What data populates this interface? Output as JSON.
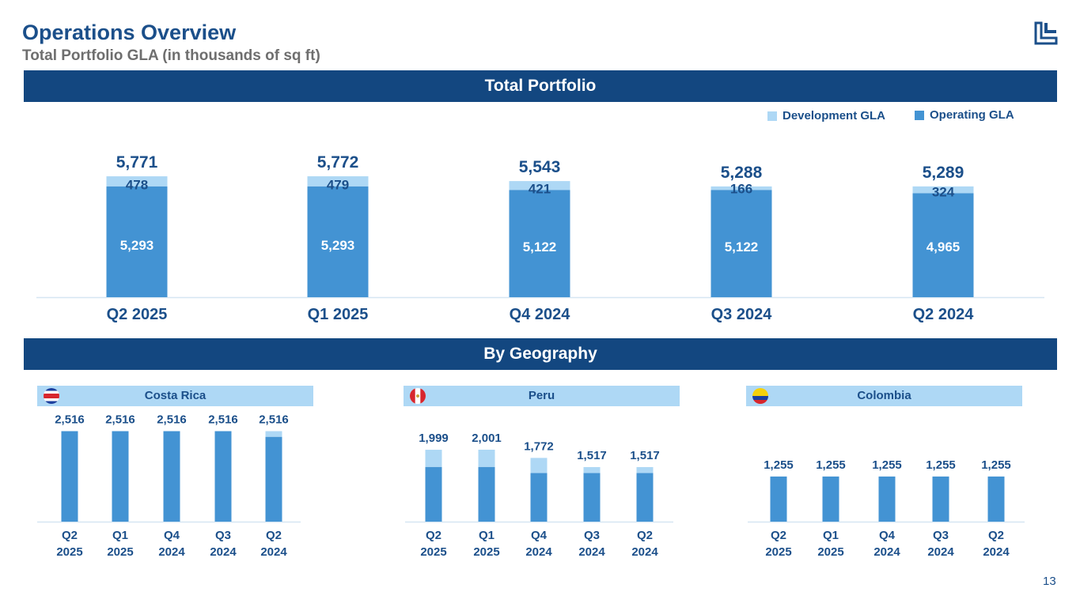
{
  "header": {
    "title": "Operations Overview",
    "subtitle": "Total Portfolio GLA (in thousands of sq ft)",
    "logo_icon": "company-logo-icon"
  },
  "sections": {
    "total_portfolio": "Total Portfolio",
    "by_geography": "By Geography"
  },
  "legend": {
    "development": "Development GLA",
    "operating": "Operating GLA"
  },
  "colors": {
    "operating": "#4393d3",
    "development": "#aed8f5",
    "navy": "#134780",
    "label_dark": "#1b4f8a"
  },
  "page_number": "13",
  "chart_data": [
    {
      "type": "bar",
      "id": "total",
      "title": "Total Portfolio",
      "stacked": true,
      "categories": [
        "Q2 2025",
        "Q1 2025",
        "Q4 2024",
        "Q3 2024",
        "Q2 2024"
      ],
      "series": [
        {
          "name": "Operating GLA",
          "values": [
            5293,
            5293,
            5122,
            5122,
            4965
          ]
        },
        {
          "name": "Development GLA",
          "values": [
            478,
            479,
            421,
            166,
            324
          ]
        }
      ],
      "totals": [
        5771,
        5772,
        5543,
        5288,
        5289
      ],
      "segment_labels": {
        "operating": [
          "5,293",
          "5,293",
          "5,122",
          "5,122",
          "4,965"
        ],
        "development": [
          "478",
          "479",
          "421",
          "166",
          "324"
        ]
      },
      "total_labels": [
        "5,771",
        "5,772",
        "5,543",
        "5,288",
        "5,289"
      ],
      "ylim": [
        0,
        6000
      ]
    },
    {
      "type": "bar",
      "id": "costa-rica",
      "title": "Costa Rica",
      "stacked": true,
      "categories": [
        "Q2\n2025",
        "Q1\n2025",
        "Q4\n2024",
        "Q3\n2024",
        "Q2\n2024"
      ],
      "series": [
        {
          "name": "Operating GLA",
          "values": [
            2516,
            2516,
            2516,
            2516,
            2359
          ]
        },
        {
          "name": "Development GLA",
          "values": [
            0,
            0,
            0,
            0,
            157
          ]
        }
      ],
      "total_labels": [
        "2,516",
        "2,516",
        "2,516",
        "2,516",
        "2,516"
      ],
      "ylim": [
        0,
        2600
      ]
    },
    {
      "type": "bar",
      "id": "peru",
      "title": "Peru",
      "stacked": true,
      "categories": [
        "Q2\n2025",
        "Q1\n2025",
        "Q4\n2024",
        "Q3\n2024",
        "Q2\n2024"
      ],
      "series": [
        {
          "name": "Operating GLA",
          "values": [
            1522,
            1522,
            1351,
            1351,
            1351
          ]
        },
        {
          "name": "Development GLA",
          "values": [
            477,
            479,
            421,
            166,
            166
          ]
        }
      ],
      "total_labels": [
        "1,999",
        "2,001",
        "1,772",
        "1,517",
        "1,517"
      ],
      "ylim": [
        0,
        2600
      ]
    },
    {
      "type": "bar",
      "id": "colombia",
      "title": "Colombia",
      "stacked": true,
      "categories": [
        "Q2\n2025",
        "Q1\n2025",
        "Q4\n2024",
        "Q3\n2024",
        "Q2\n2024"
      ],
      "series": [
        {
          "name": "Operating GLA",
          "values": [
            1255,
            1255,
            1255,
            1255,
            1255
          ]
        },
        {
          "name": "Development GLA",
          "values": [
            0,
            0,
            0,
            0,
            0
          ]
        }
      ],
      "total_labels": [
        "1,255",
        "1,255",
        "1,255",
        "1,255",
        "1,255"
      ],
      "ylim": [
        0,
        2600
      ]
    }
  ]
}
